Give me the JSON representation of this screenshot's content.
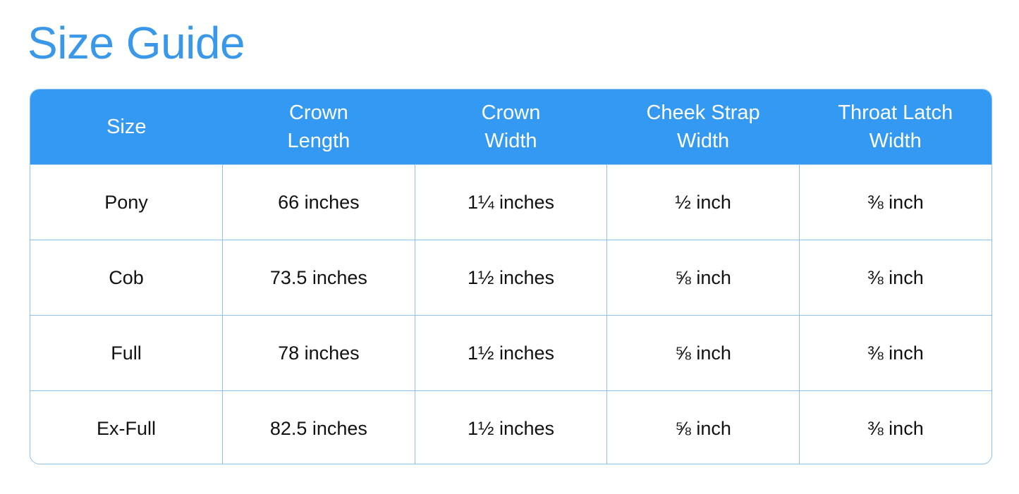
{
  "title": "Size Guide",
  "colors": {
    "header": "#3399f3",
    "title": "#3a98ea",
    "border": "#8fc1ea"
  },
  "table": {
    "headers": [
      "Size",
      "Crown\nLength",
      "Crown\nWidth",
      "Cheek Strap\nWidth",
      "Throat Latch\nWidth"
    ],
    "rows": [
      [
        "Pony",
        "66 inches",
        "1¼ inches",
        "½ inch",
        "⅜ inch"
      ],
      [
        "Cob",
        "73.5 inches",
        "1½ inches",
        "⅝ inch",
        "⅜ inch"
      ],
      [
        "Full",
        "78 inches",
        "1½ inches",
        "⅝ inch",
        "⅜ inch"
      ],
      [
        "Ex-Full",
        "82.5 inches",
        "1½ inches",
        "⅝ inch",
        "⅜ inch"
      ]
    ]
  }
}
